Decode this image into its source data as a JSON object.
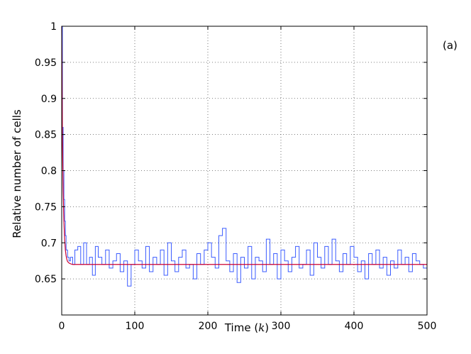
{
  "chart_data": {
    "type": "line",
    "panel_label": "(a)",
    "xlabel_text": "Time (",
    "xlabel_var": "k",
    "xlabel_close": ")",
    "ylabel": "Relative number of cells",
    "xlim": [
      0,
      500
    ],
    "ylim": [
      0.6,
      1.0
    ],
    "x_ticks": [
      0,
      100,
      200,
      300,
      400,
      500
    ],
    "y_ticks": [
      0.65,
      0.7,
      0.75,
      0.8,
      0.85,
      0.9,
      0.95,
      1.0
    ],
    "x_tick_labels": [
      "0",
      "100",
      "200",
      "300",
      "400",
      "500"
    ],
    "y_tick_labels": [
      "0.65",
      "0.7",
      "0.75",
      "0.8",
      "0.85",
      "0.9",
      "0.95",
      "1"
    ],
    "grid": true,
    "series": [
      {
        "color": "#3b5cff",
        "style": "step",
        "x": [
          0,
          1,
          2,
          3,
          4,
          5,
          6,
          8,
          10,
          12,
          15,
          18,
          22,
          26,
          30,
          34,
          38,
          42,
          46,
          50,
          55,
          60,
          65,
          70,
          75,
          80,
          85,
          90,
          95,
          100,
          105,
          110,
          115,
          120,
          125,
          130,
          135,
          140,
          145,
          150,
          155,
          160,
          165,
          170,
          175,
          180,
          185,
          190,
          195,
          200,
          205,
          210,
          215,
          220,
          225,
          230,
          235,
          240,
          245,
          250,
          255,
          260,
          265,
          270,
          275,
          280,
          285,
          290,
          295,
          300,
          305,
          310,
          315,
          320,
          325,
          330,
          335,
          340,
          345,
          350,
          355,
          360,
          365,
          370,
          375,
          380,
          385,
          390,
          395,
          400,
          405,
          410,
          415,
          420,
          425,
          430,
          435,
          440,
          445,
          450,
          455,
          460,
          465,
          470,
          475,
          480,
          485,
          490,
          495,
          500
        ],
        "y": [
          1.0,
          0.86,
          0.8,
          0.76,
          0.73,
          0.71,
          0.69,
          0.68,
          0.675,
          0.68,
          0.67,
          0.69,
          0.695,
          0.67,
          0.7,
          0.67,
          0.68,
          0.655,
          0.695,
          0.68,
          0.67,
          0.69,
          0.665,
          0.675,
          0.685,
          0.66,
          0.675,
          0.64,
          0.67,
          0.69,
          0.675,
          0.665,
          0.695,
          0.66,
          0.68,
          0.67,
          0.69,
          0.655,
          0.7,
          0.675,
          0.66,
          0.68,
          0.69,
          0.665,
          0.67,
          0.65,
          0.685,
          0.67,
          0.69,
          0.7,
          0.68,
          0.665,
          0.71,
          0.72,
          0.675,
          0.66,
          0.685,
          0.645,
          0.68,
          0.665,
          0.695,
          0.65,
          0.68,
          0.675,
          0.66,
          0.705,
          0.67,
          0.685,
          0.65,
          0.69,
          0.675,
          0.66,
          0.68,
          0.695,
          0.665,
          0.67,
          0.69,
          0.655,
          0.7,
          0.68,
          0.665,
          0.695,
          0.67,
          0.705,
          0.675,
          0.66,
          0.685,
          0.67,
          0.695,
          0.68,
          0.66,
          0.675,
          0.65,
          0.685,
          0.67,
          0.69,
          0.665,
          0.68,
          0.655,
          0.675,
          0.665,
          0.69,
          0.67,
          0.68,
          0.66,
          0.685,
          0.675,
          0.67,
          0.665,
          0.68
        ]
      },
      {
        "color": "#cc0033",
        "style": "line",
        "x": [
          0,
          1,
          2,
          3,
          4,
          5,
          6,
          7,
          8,
          10,
          12,
          15,
          20,
          500
        ],
        "y": [
          1.0,
          0.84,
          0.77,
          0.73,
          0.705,
          0.69,
          0.682,
          0.677,
          0.674,
          0.672,
          0.671,
          0.67,
          0.67,
          0.67
        ]
      }
    ]
  }
}
